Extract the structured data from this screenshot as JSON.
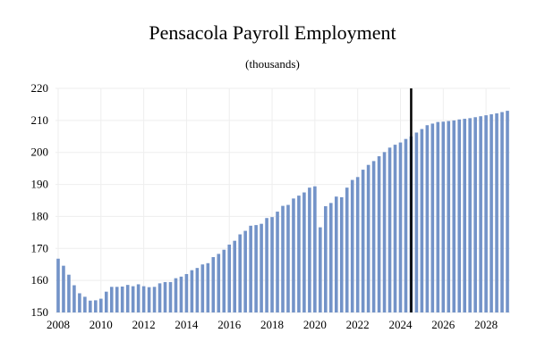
{
  "chart_data": {
    "type": "bar",
    "title": "Pensacola Payroll Employment",
    "subtitle": "(thousands)",
    "xlabel": "",
    "ylabel": "",
    "ylim": [
      150,
      220
    ],
    "yticks": [
      150,
      160,
      170,
      180,
      190,
      200,
      210,
      220
    ],
    "xticks": [
      "2008",
      "2010",
      "2012",
      "2014",
      "2016",
      "2018",
      "2020",
      "2022",
      "2024",
      "2026",
      "2028"
    ],
    "x_start": 2008.0,
    "x_step": 0.25,
    "grid": true,
    "bar_color": "#7393c8",
    "forecast_line_color": "#000000",
    "forecast_start": 2024.5,
    "values": [
      166.8,
      164.6,
      161.8,
      158.5,
      156.0,
      154.9,
      153.7,
      153.8,
      154.3,
      156.5,
      158.0,
      158.0,
      158.1,
      158.6,
      158.2,
      158.8,
      158.2,
      157.9,
      158.0,
      159.1,
      159.5,
      159.5,
      160.7,
      161.2,
      162.0,
      163.2,
      163.9,
      165.0,
      165.4,
      167.3,
      168.3,
      169.6,
      171.2,
      172.4,
      174.4,
      175.5,
      177.1,
      177.3,
      177.7,
      179.5,
      179.8,
      181.5,
      183.3,
      183.6,
      185.6,
      186.5,
      187.5,
      189.0,
      189.4,
      176.6,
      183.2,
      184.2,
      186.2,
      186.0,
      189.0,
      191.4,
      192.3,
      194.6,
      196.1,
      197.3,
      198.8,
      200.1,
      201.5,
      202.4,
      203.1,
      204.2,
      205.0,
      206.2,
      207.3,
      208.5,
      209.0,
      209.5,
      209.6,
      209.8,
      210.0,
      210.3,
      210.5,
      210.7,
      211.0,
      211.3,
      211.6,
      211.9,
      212.2,
      212.6,
      213.0
    ]
  }
}
